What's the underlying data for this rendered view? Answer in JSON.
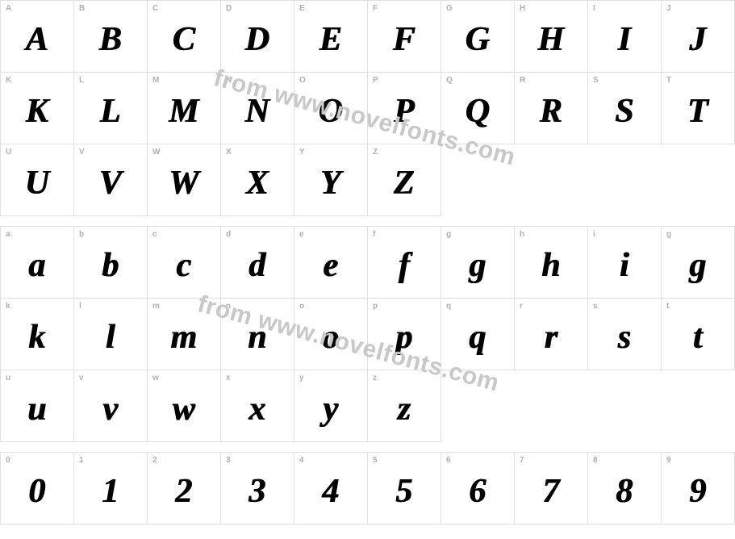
{
  "watermark": "from www.novelfonts.com",
  "grid_border_color": "#e0e0e0",
  "label_color": "#b0b0b0",
  "glyph_color": "#000000",
  "watermark_color": "#c8c8c8",
  "sections": {
    "uppercase": [
      {
        "label": "A",
        "glyph": "A"
      },
      {
        "label": "B",
        "glyph": "B"
      },
      {
        "label": "C",
        "glyph": "C"
      },
      {
        "label": "D",
        "glyph": "D"
      },
      {
        "label": "E",
        "glyph": "E"
      },
      {
        "label": "F",
        "glyph": "F"
      },
      {
        "label": "G",
        "glyph": "G"
      },
      {
        "label": "H",
        "glyph": "H"
      },
      {
        "label": "I",
        "glyph": "I"
      },
      {
        "label": "J",
        "glyph": "J"
      },
      {
        "label": "K",
        "glyph": "K"
      },
      {
        "label": "L",
        "glyph": "L"
      },
      {
        "label": "M",
        "glyph": "M"
      },
      {
        "label": "N",
        "glyph": "N"
      },
      {
        "label": "O",
        "glyph": "O"
      },
      {
        "label": "P",
        "glyph": "P"
      },
      {
        "label": "Q",
        "glyph": "Q"
      },
      {
        "label": "R",
        "glyph": "R"
      },
      {
        "label": "S",
        "glyph": "S"
      },
      {
        "label": "T",
        "glyph": "T"
      },
      {
        "label": "U",
        "glyph": "U"
      },
      {
        "label": "V",
        "glyph": "V"
      },
      {
        "label": "W",
        "glyph": "W"
      },
      {
        "label": "X",
        "glyph": "X"
      },
      {
        "label": "Y",
        "glyph": "Y"
      },
      {
        "label": "Z",
        "glyph": "Z"
      }
    ],
    "lowercase": [
      {
        "label": "a",
        "glyph": "a"
      },
      {
        "label": "b",
        "glyph": "b"
      },
      {
        "label": "c",
        "glyph": "c"
      },
      {
        "label": "d",
        "glyph": "d"
      },
      {
        "label": "e",
        "glyph": "e"
      },
      {
        "label": "f",
        "glyph": "f"
      },
      {
        "label": "g",
        "glyph": "g"
      },
      {
        "label": "h",
        "glyph": "h"
      },
      {
        "label": "i",
        "glyph": "i"
      },
      {
        "label": "g",
        "glyph": "g"
      },
      {
        "label": "k",
        "glyph": "k"
      },
      {
        "label": "l",
        "glyph": "l"
      },
      {
        "label": "m",
        "glyph": "m"
      },
      {
        "label": "n",
        "glyph": "n"
      },
      {
        "label": "o",
        "glyph": "o"
      },
      {
        "label": "p",
        "glyph": "p"
      },
      {
        "label": "q",
        "glyph": "q"
      },
      {
        "label": "r",
        "glyph": "r"
      },
      {
        "label": "s",
        "glyph": "s"
      },
      {
        "label": "t",
        "glyph": "t"
      },
      {
        "label": "u",
        "glyph": "u"
      },
      {
        "label": "v",
        "glyph": "v"
      },
      {
        "label": "w",
        "glyph": "w"
      },
      {
        "label": "x",
        "glyph": "x"
      },
      {
        "label": "y",
        "glyph": "y"
      },
      {
        "label": "z",
        "glyph": "z"
      }
    ],
    "digits": [
      {
        "label": "0",
        "glyph": "0"
      },
      {
        "label": "1",
        "glyph": "1"
      },
      {
        "label": "2",
        "glyph": "2"
      },
      {
        "label": "3",
        "glyph": "3"
      },
      {
        "label": "4",
        "glyph": "4"
      },
      {
        "label": "5",
        "glyph": "5"
      },
      {
        "label": "6",
        "glyph": "6"
      },
      {
        "label": "7",
        "glyph": "7"
      },
      {
        "label": "8",
        "glyph": "8"
      },
      {
        "label": "9",
        "glyph": "9"
      }
    ]
  }
}
